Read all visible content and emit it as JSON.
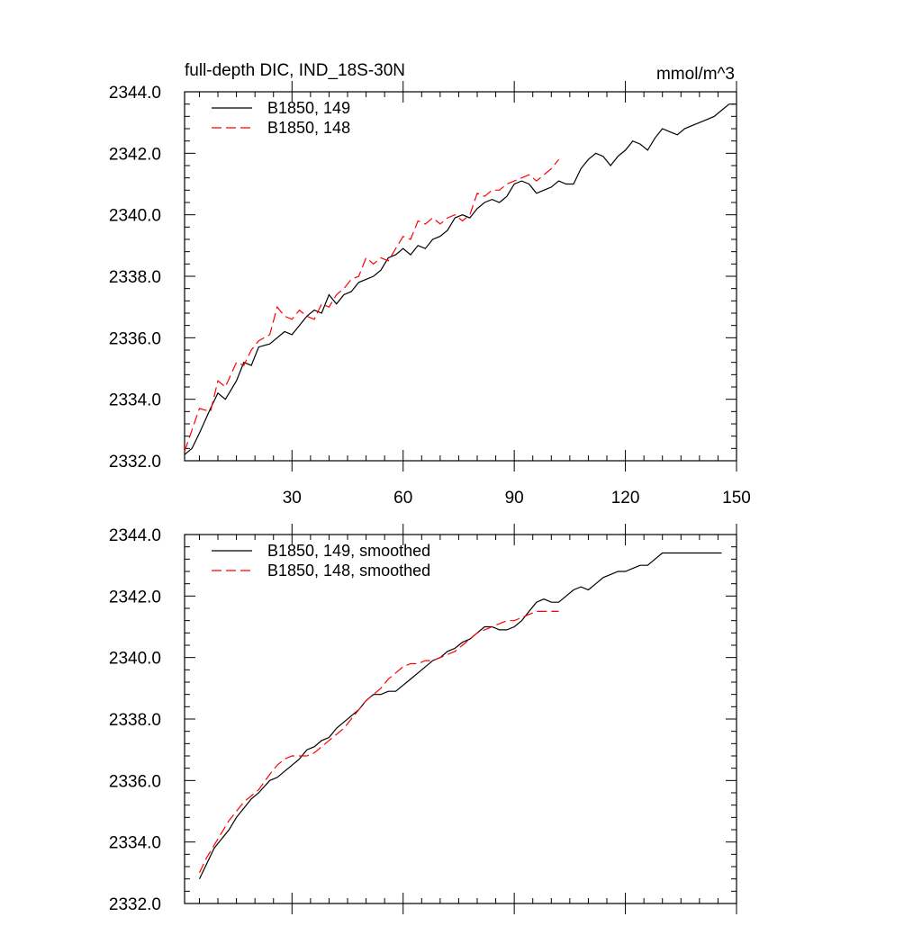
{
  "chart_data": [
    {
      "type": "line",
      "title": "full-depth DIC, IND_18S-30N",
      "units": "mmol/m^3",
      "xlim": [
        1,
        150
      ],
      "ylim": [
        2332.0,
        2344.0
      ],
      "xticks": [
        30,
        60,
        90,
        120,
        150
      ],
      "xtick_labels": [
        "30",
        "60",
        "90",
        "120",
        "150"
      ],
      "yticks": [
        2332.0,
        2334.0,
        2336.0,
        2338.0,
        2340.0,
        2342.0,
        2344.0
      ],
      "ytick_labels": [
        "2332.0",
        "2334.0",
        "2336.0",
        "2338.0",
        "2340.0",
        "2342.0",
        "2344.0"
      ],
      "legend": "top-left",
      "grid": false,
      "series": [
        {
          "name": "B1850, 149",
          "color": "#000000",
          "dash": "solid",
          "x": [
            1,
            3,
            5,
            8,
            10,
            12,
            15,
            17,
            19,
            21,
            24,
            26,
            28,
            30,
            32,
            34,
            36,
            38,
            40,
            42,
            44,
            46,
            48,
            50,
            52,
            54,
            56,
            58,
            60,
            62,
            64,
            66,
            68,
            70,
            72,
            74,
            76,
            78,
            80,
            82,
            84,
            86,
            88,
            90,
            92,
            94,
            96,
            98,
            100,
            102,
            104,
            106,
            108,
            110,
            112,
            114,
            116,
            118,
            120,
            122,
            124,
            126,
            128,
            130,
            132,
            134,
            136,
            138,
            140,
            142,
            144,
            146,
            148,
            150
          ],
          "values": [
            2332.2,
            2332.4,
            2332.9,
            2333.7,
            2334.2,
            2334.0,
            2334.6,
            2335.2,
            2335.1,
            2335.7,
            2335.8,
            2336.0,
            2336.2,
            2336.1,
            2336.4,
            2336.7,
            2336.9,
            2336.8,
            2337.4,
            2337.1,
            2337.4,
            2337.5,
            2337.8,
            2337.9,
            2338.0,
            2338.2,
            2338.6,
            2338.7,
            2338.9,
            2338.7,
            2339.0,
            2338.9,
            2339.2,
            2339.3,
            2339.5,
            2339.9,
            2340.0,
            2339.9,
            2340.2,
            2340.4,
            2340.5,
            2340.4,
            2340.6,
            2341.0,
            2341.1,
            2341.0,
            2340.7,
            2340.8,
            2340.9,
            2341.1,
            2341.0,
            2341.0,
            2341.5,
            2341.8,
            2342.0,
            2341.9,
            2341.6,
            2341.9,
            2342.1,
            2342.4,
            2342.3,
            2342.1,
            2342.5,
            2342.8,
            2342.7,
            2342.6,
            2342.8,
            2342.9,
            2343.0,
            2343.1,
            2343.2,
            2343.4,
            2343.6,
            2343.6
          ]
        },
        {
          "name": "B1850, 148",
          "color": "#ff0000",
          "dash": "dashed",
          "x": [
            1,
            3,
            5,
            8,
            10,
            12,
            15,
            17,
            19,
            21,
            24,
            26,
            28,
            30,
            32,
            34,
            36,
            38,
            40,
            42,
            44,
            46,
            48,
            50,
            52,
            54,
            56,
            58,
            60,
            62,
            64,
            66,
            68,
            70,
            72,
            74,
            76,
            78,
            80,
            82,
            84,
            86,
            88,
            90,
            92,
            94,
            96,
            98,
            100,
            102
          ],
          "values": [
            2332.3,
            2333.0,
            2333.7,
            2333.6,
            2334.6,
            2334.4,
            2335.2,
            2335.1,
            2335.6,
            2335.9,
            2336.1,
            2337.0,
            2336.7,
            2336.6,
            2336.9,
            2336.7,
            2336.6,
            2337.1,
            2337.0,
            2337.4,
            2337.6,
            2337.9,
            2338.0,
            2338.6,
            2338.4,
            2338.6,
            2338.5,
            2338.9,
            2339.3,
            2339.2,
            2339.8,
            2339.7,
            2339.9,
            2339.7,
            2339.9,
            2340.0,
            2339.8,
            2340.0,
            2340.7,
            2340.6,
            2340.8,
            2340.8,
            2341.0,
            2341.1,
            2341.2,
            2341.3,
            2341.1,
            2341.3,
            2341.5,
            2341.8
          ]
        }
      ]
    },
    {
      "type": "line",
      "title": "",
      "xlim": [
        1,
        150
      ],
      "ylim": [
        2332.0,
        2344.0
      ],
      "yticks": [
        2332.0,
        2334.0,
        2336.0,
        2338.0,
        2340.0,
        2342.0,
        2344.0
      ],
      "ytick_labels": [
        "2332.0",
        "2334.0",
        "2336.0",
        "2338.0",
        "2340.0",
        "2342.0",
        "2344.0"
      ],
      "xticks": [
        30,
        60,
        90,
        120,
        150
      ],
      "legend": "top-left",
      "grid": false,
      "series": [
        {
          "name": "B1850, 149, smoothed",
          "color": "#000000",
          "dash": "solid",
          "x": [
            5,
            7,
            9,
            11,
            13,
            15,
            17,
            19,
            21,
            24,
            26,
            28,
            30,
            32,
            34,
            36,
            38,
            40,
            42,
            44,
            46,
            48,
            50,
            52,
            54,
            56,
            58,
            60,
            62,
            64,
            66,
            68,
            70,
            72,
            74,
            76,
            78,
            80,
            82,
            84,
            86,
            88,
            90,
            92,
            94,
            96,
            98,
            100,
            102,
            104,
            106,
            108,
            110,
            112,
            114,
            116,
            118,
            120,
            122,
            124,
            126,
            128,
            130,
            132,
            134,
            136,
            138,
            140,
            142,
            144,
            146
          ],
          "values": [
            2332.8,
            2333.3,
            2333.8,
            2334.1,
            2334.4,
            2334.8,
            2335.1,
            2335.4,
            2335.6,
            2336.0,
            2336.1,
            2336.3,
            2336.5,
            2336.7,
            2337.0,
            2337.1,
            2337.3,
            2337.4,
            2337.7,
            2337.9,
            2338.1,
            2338.3,
            2338.6,
            2338.8,
            2338.8,
            2338.9,
            2338.9,
            2339.1,
            2339.3,
            2339.5,
            2339.7,
            2339.9,
            2340.0,
            2340.2,
            2340.3,
            2340.5,
            2340.6,
            2340.8,
            2341.0,
            2341.0,
            2340.9,
            2340.9,
            2341.0,
            2341.2,
            2341.5,
            2341.8,
            2341.9,
            2341.8,
            2341.8,
            2342.0,
            2342.2,
            2342.3,
            2342.2,
            2342.4,
            2342.6,
            2342.7,
            2342.8,
            2342.8,
            2342.9,
            2343.0,
            2343.0,
            2343.2,
            2343.4,
            2343.4,
            2343.4,
            2343.4,
            2343.4,
            2343.4,
            2343.4,
            2343.4,
            2343.4
          ]
        },
        {
          "name": "B1850, 148, smoothed",
          "color": "#ff0000",
          "dash": "dashed",
          "x": [
            5,
            7,
            9,
            11,
            13,
            15,
            17,
            19,
            21,
            24,
            26,
            28,
            30,
            32,
            34,
            36,
            38,
            40,
            42,
            44,
            46,
            48,
            50,
            52,
            54,
            56,
            58,
            60,
            62,
            64,
            66,
            68,
            70,
            72,
            74,
            76,
            78,
            80,
            82,
            84,
            86,
            88,
            90,
            92,
            94,
            96,
            98,
            100,
            102
          ],
          "values": [
            2333.0,
            2333.5,
            2333.9,
            2334.3,
            2334.7,
            2335.0,
            2335.3,
            2335.5,
            2335.7,
            2336.2,
            2336.5,
            2336.7,
            2336.8,
            2336.8,
            2336.8,
            2336.9,
            2337.1,
            2337.3,
            2337.5,
            2337.7,
            2338.0,
            2338.3,
            2338.6,
            2338.8,
            2339.0,
            2339.3,
            2339.5,
            2339.7,
            2339.8,
            2339.8,
            2339.9,
            2339.9,
            2340.0,
            2340.1,
            2340.2,
            2340.4,
            2340.6,
            2340.8,
            2340.9,
            2341.0,
            2341.1,
            2341.2,
            2341.2,
            2341.3,
            2341.4,
            2341.5,
            2341.5,
            2341.5,
            2341.5
          ]
        }
      ]
    }
  ]
}
